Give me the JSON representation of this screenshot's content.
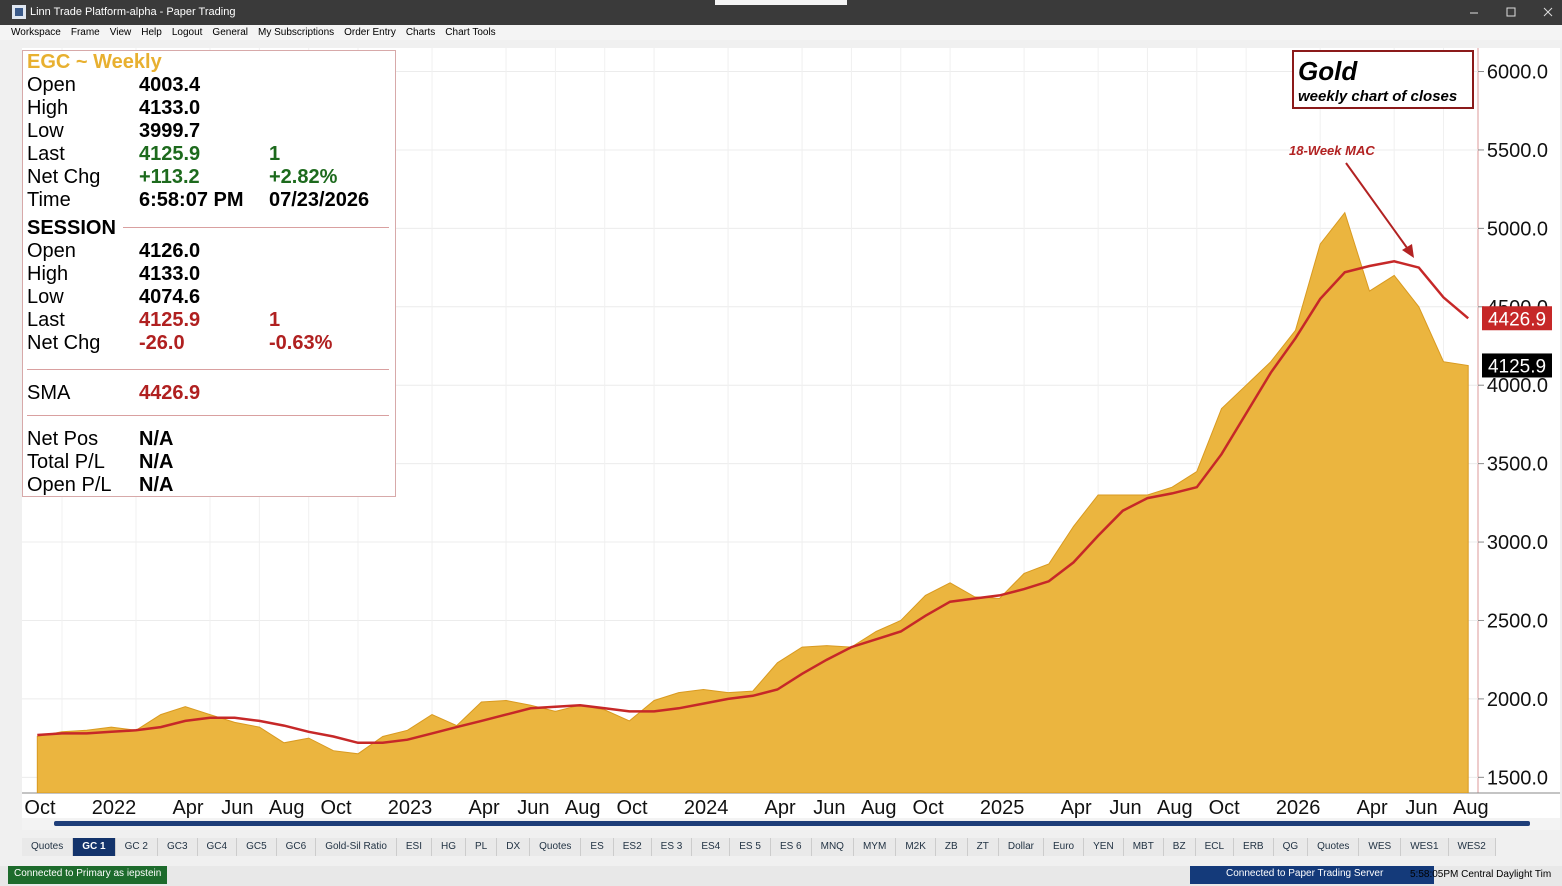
{
  "window": {
    "title": "Linn Trade Platform-alpha - Paper Trading",
    "menu": [
      "Workspace",
      "Frame",
      "View",
      "Help",
      "Logout",
      "General",
      "My Subscriptions",
      "Order Entry",
      "Charts",
      "Chart Tools"
    ]
  },
  "info_panel": {
    "title": "EGC ~ Weekly",
    "quote": [
      [
        "Open",
        "4003.4"
      ],
      [
        "High",
        "4133.0"
      ],
      [
        "Low",
        "3999.7"
      ],
      [
        "Last",
        "4125.9",
        "1"
      ],
      [
        "Net Chg",
        "+113.2",
        "+2.82%"
      ],
      [
        "Time",
        "6:58:07 PM",
        "07/23/2026"
      ]
    ],
    "session_title": "SESSION",
    "session": [
      [
        "Open",
        "4126.0"
      ],
      [
        "High",
        "4133.0"
      ],
      [
        "Low",
        "4074.6"
      ],
      [
        "Last",
        "4125.9",
        "1"
      ],
      [
        "Net Chg",
        "-26.0",
        "-0.63%"
      ]
    ],
    "study": [
      [
        "SMA",
        "4426.9"
      ]
    ],
    "position": [
      [
        "Net Pos",
        "N/A"
      ],
      [
        "Total P/L",
        "N/A"
      ],
      [
        "Open P/L",
        "N/A"
      ]
    ]
  },
  "chart_data": {
    "type": "area",
    "title": "Gold",
    "subtitle": "weekly chart of closes",
    "annotations": [
      "18-Week MAC"
    ],
    "x": [
      "2021-09",
      "2021-10",
      "2021-11",
      "2021-12",
      "2022-01",
      "2022-02",
      "2022-03",
      "2022-04",
      "2022-05",
      "2022-06",
      "2022-07",
      "2022-08",
      "2022-09",
      "2022-10",
      "2022-11",
      "2022-12",
      "2023-01",
      "2023-02",
      "2023-03",
      "2023-04",
      "2023-05",
      "2023-06",
      "2023-07",
      "2023-08",
      "2023-09",
      "2023-10",
      "2023-11",
      "2023-12",
      "2024-01",
      "2024-02",
      "2024-03",
      "2024-04",
      "2024-05",
      "2024-06",
      "2024-07",
      "2024-08",
      "2024-09",
      "2024-10",
      "2024-11",
      "2024-12",
      "2025-01",
      "2025-02",
      "2025-03",
      "2025-04",
      "2025-05",
      "2025-06",
      "2025-07",
      "2025-08",
      "2025-09",
      "2025-10",
      "2025-11",
      "2025-12",
      "2026-01",
      "2026-02",
      "2026-03",
      "2026-04",
      "2026-05",
      "2026-06",
      "2026-07"
    ],
    "series": [
      {
        "name": "Close",
        "color": "#ebb53f",
        "values": [
          1760,
          1790,
          1800,
          1820,
          1800,
          1900,
          1950,
          1900,
          1850,
          1820,
          1720,
          1750,
          1670,
          1650,
          1760,
          1800,
          1900,
          1830,
          1980,
          1990,
          1960,
          1920,
          1960,
          1930,
          1860,
          1990,
          2040,
          2060,
          2040,
          2050,
          2230,
          2330,
          2340,
          2330,
          2430,
          2500,
          2660,
          2740,
          2650,
          2640,
          2800,
          2860,
          3100,
          3300,
          3300,
          3300,
          3350,
          3450,
          3850,
          4000,
          4150,
          4350,
          4900,
          5100,
          4600,
          4700,
          4500,
          4150,
          4125.9
        ]
      },
      {
        "name": "18-Week MAC",
        "color": "#c62828",
        "values": [
          1770,
          1780,
          1780,
          1790,
          1800,
          1820,
          1860,
          1880,
          1880,
          1860,
          1830,
          1790,
          1760,
          1720,
          1720,
          1740,
          1780,
          1820,
          1860,
          1900,
          1940,
          1950,
          1960,
          1940,
          1920,
          1920,
          1940,
          1970,
          2000,
          2020,
          2060,
          2160,
          2250,
          2330,
          2380,
          2430,
          2530,
          2620,
          2640,
          2660,
          2700,
          2750,
          2870,
          3040,
          3200,
          3280,
          3310,
          3350,
          3560,
          3820,
          4080,
          4300,
          4550,
          4720,
          4760,
          4790,
          4750,
          4560,
          4426.9
        ]
      }
    ],
    "ylim": [
      1400,
      6150
    ],
    "yticks": [
      {
        "value": 1500,
        "label": "1500.0"
      },
      {
        "value": 2000,
        "label": "2000.0"
      },
      {
        "value": 2500,
        "label": "2500.0"
      },
      {
        "value": 3000,
        "label": "3000.0"
      },
      {
        "value": 3500,
        "label": "3500.0"
      },
      {
        "value": 4000,
        "label": "4000.0"
      },
      {
        "value": 4500,
        "label": "4500.0"
      },
      {
        "value": 5000,
        "label": "5000.0"
      },
      {
        "value": 5500,
        "label": "5500.0"
      },
      {
        "value": 6000,
        "label": "6000.0"
      }
    ],
    "xticks": [
      {
        "value": "2021-10",
        "label": "Oct"
      },
      {
        "value": "2022-01",
        "label": "2022"
      },
      {
        "value": "2022-04",
        "label": "Apr"
      },
      {
        "value": "2022-06",
        "label": "Jun"
      },
      {
        "value": "2022-08",
        "label": "Aug"
      },
      {
        "value": "2022-10",
        "label": "Oct"
      },
      {
        "value": "2023-01",
        "label": "2023"
      },
      {
        "value": "2023-04",
        "label": "Apr"
      },
      {
        "value": "2023-06",
        "label": "Jun"
      },
      {
        "value": "2023-08",
        "label": "Aug"
      },
      {
        "value": "2023-10",
        "label": "Oct"
      },
      {
        "value": "2024-01",
        "label": "2024"
      },
      {
        "value": "2024-04",
        "label": "Apr"
      },
      {
        "value": "2024-06",
        "label": "Jun"
      },
      {
        "value": "2024-08",
        "label": "Aug"
      },
      {
        "value": "2024-10",
        "label": "Oct"
      },
      {
        "value": "2025-01",
        "label": "2025"
      },
      {
        "value": "2025-04",
        "label": "Apr"
      },
      {
        "value": "2025-06",
        "label": "Jun"
      },
      {
        "value": "2025-08",
        "label": "Aug"
      },
      {
        "value": "2025-10",
        "label": "Oct"
      },
      {
        "value": "2026-01",
        "label": "2026"
      },
      {
        "value": "2026-04",
        "label": "Apr"
      },
      {
        "value": "2026-06",
        "label": "Jun"
      },
      {
        "value": "2026-08",
        "label": "Aug"
      }
    ],
    "grid": true
  },
  "tabs": {
    "items": [
      "Quotes",
      "GC 1",
      "GC 2",
      "GC3",
      "GC4",
      "GC5",
      "GC6",
      "Gold-Sil Ratio",
      "ESI",
      "HG",
      "PL",
      "DX",
      "Quotes",
      "ES",
      "ES2",
      "ES 3",
      "ES4",
      "ES 5",
      "ES 6",
      "MNQ",
      "MYM",
      "M2K",
      "ZB",
      "ZT",
      "Dollar",
      "Euro",
      "YEN",
      "MBT",
      "BZ",
      "ECL",
      "ERB",
      "QG",
      "Quotes",
      "WES",
      "WES1",
      "WES2"
    ],
    "active": 1
  },
  "status": {
    "left": "Connected to Primary as iepstein",
    "server": "Connected to Paper Trading Server",
    "clock": "5:58:05PM Central Daylight Tim"
  }
}
